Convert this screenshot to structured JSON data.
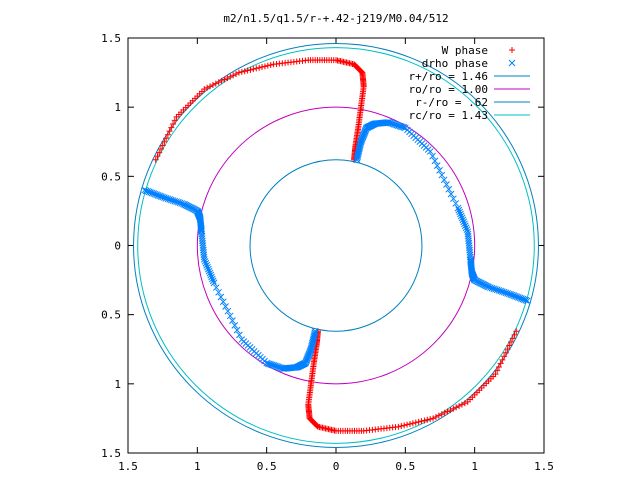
{
  "chart_data": {
    "type": "scatter",
    "title": "m2/n1.5/q1.5/r-+.42-j219/M0.04/512",
    "xlabel": "",
    "ylabel": "",
    "xlim": [
      -1.5,
      1.5
    ],
    "ylim": [
      -1.5,
      1.5
    ],
    "x_ticks": [
      -1.5,
      -1,
      -0.5,
      0,
      0.5,
      1,
      1.5
    ],
    "y_ticks": [
      -1.5,
      -1,
      -0.5,
      0,
      0.5,
      1,
      1.5
    ],
    "x_tick_labels": [
      "1.5",
      "1",
      "0.5",
      "0",
      "0.5",
      "1",
      "1.5"
    ],
    "y_tick_labels": [
      "1.5",
      "1",
      "0.5",
      "0",
      "0.5",
      "1",
      "1.5"
    ],
    "grid": false,
    "legend_position": "top-right",
    "series": [
      {
        "name": "W phase",
        "kind": "points",
        "marker": "+",
        "color": "#ff0000",
        "arms": [
          {
            "x": [
              0.13,
              0.14,
              0.16,
              0.18,
              0.2,
              0.19,
              0.13,
              0.0,
              -0.2,
              -0.45,
              -0.7,
              -0.95,
              -1.15,
              -1.3
            ],
            "y": [
              0.62,
              0.72,
              0.85,
              1.0,
              1.15,
              1.25,
              1.31,
              1.34,
              1.34,
              1.31,
              1.25,
              1.13,
              0.93,
              0.62
            ]
          },
          {
            "x": [
              -0.13,
              -0.14,
              -0.16,
              -0.18,
              -0.2,
              -0.19,
              -0.13,
              0.0,
              0.2,
              0.45,
              0.7,
              0.95,
              1.15,
              1.3
            ],
            "y": [
              -0.62,
              -0.72,
              -0.85,
              -1.0,
              -1.15,
              -1.25,
              -1.31,
              -1.34,
              -1.34,
              -1.31,
              -1.25,
              -1.13,
              -0.93,
              -0.62
            ]
          }
        ]
      },
      {
        "name": "drho phase",
        "kind": "points",
        "marker": "x",
        "color": "#0080ff",
        "arms": [
          {
            "x": [
              0.15,
              0.18,
              0.22,
              0.28,
              0.38,
              0.5,
              0.68,
              0.88,
              0.95,
              0.97,
              0.98,
              1.0,
              1.1,
              1.25,
              1.38
            ],
            "y": [
              0.62,
              0.75,
              0.85,
              0.88,
              0.89,
              0.85,
              0.68,
              0.27,
              0.1,
              -0.1,
              -0.2,
              -0.25,
              -0.3,
              -0.35,
              -0.4
            ]
          },
          {
            "x": [
              -0.15,
              -0.18,
              -0.22,
              -0.28,
              -0.38,
              -0.5,
              -0.68,
              -0.88,
              -0.95,
              -0.97,
              -0.98,
              -1.0,
              -1.1,
              -1.25,
              -1.38
            ],
            "y": [
              -0.62,
              -0.75,
              -0.85,
              -0.88,
              -0.89,
              -0.85,
              -0.68,
              -0.27,
              -0.1,
              0.1,
              0.2,
              0.25,
              0.3,
              0.35,
              0.4
            ]
          }
        ]
      },
      {
        "name": "r+/ro = 1.46",
        "kind": "circle",
        "radius": 1.46,
        "color": "#0080c0"
      },
      {
        "name": "ro/ro = 1.00",
        "kind": "circle",
        "radius": 1.0,
        "color": "#c000c0"
      },
      {
        "name": "r-/ro = .62",
        "kind": "circle",
        "radius": 0.62,
        "color": "#0080c0"
      },
      {
        "name": "rc/ro = 1.43",
        "kind": "circle",
        "radius": 1.43,
        "color": "#00c0c0"
      }
    ]
  }
}
